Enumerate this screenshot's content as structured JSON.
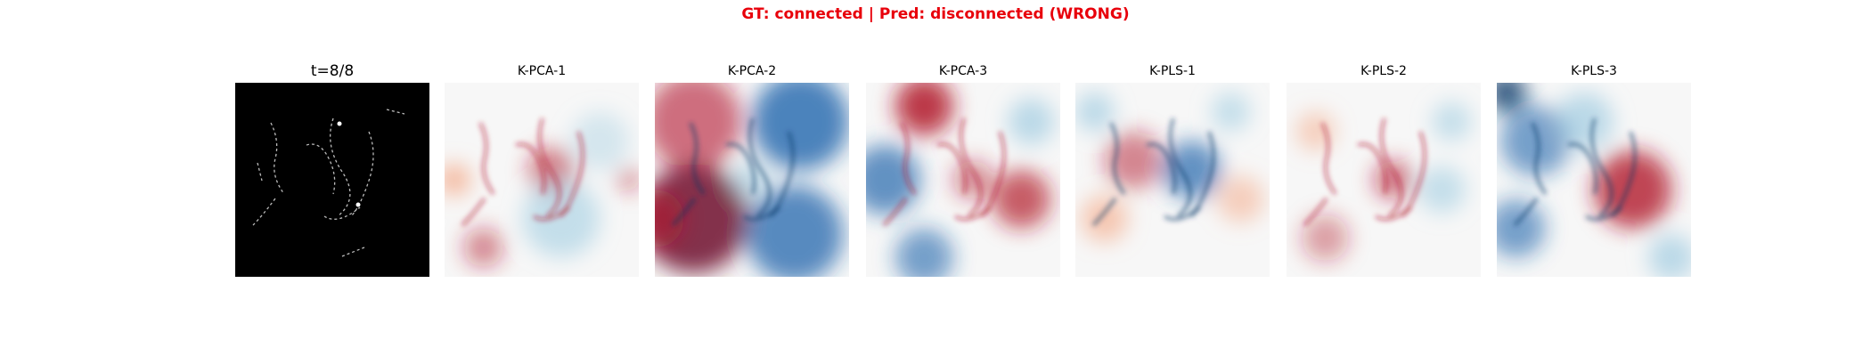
{
  "header": {
    "title": "GT: connected | Pred: disconnected (WRONG)"
  },
  "panels": [
    {
      "title": "t=8/8"
    },
    {
      "title": "K-PCA-1"
    },
    {
      "title": "K-PCA-2"
    },
    {
      "title": "K-PCA-3"
    },
    {
      "title": "K-PLS-1"
    },
    {
      "title": "K-PLS-2"
    },
    {
      "title": "K-PLS-3"
    }
  ]
}
